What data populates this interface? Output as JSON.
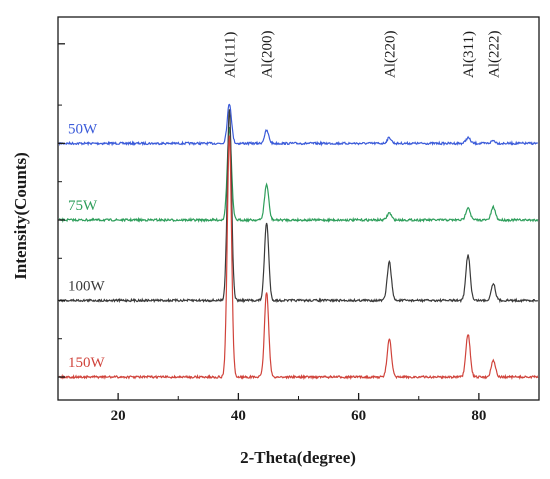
{
  "chart_data": {
    "type": "line",
    "title": "",
    "xlabel": "2-Theta(degree)",
    "ylabel": "Intensity(Counts)",
    "xlim": [
      10,
      90
    ],
    "xticks": [
      20,
      40,
      60,
      80
    ],
    "y_ticks_labeled": false,
    "grid": false,
    "legend": "none (series labels placed on left of each trace)",
    "peak_annotations": [
      {
        "label": "Al(111)",
        "x": 38.5
      },
      {
        "label": "Al(200)",
        "x": 44.7
      },
      {
        "label": "Al(220)",
        "x": 65.1
      },
      {
        "label": "Al(311)",
        "x": 78.2
      },
      {
        "label": "Al(222)",
        "x": 82.4
      }
    ],
    "series": [
      {
        "name": "50W",
        "color": "#3b5bd9",
        "baseline_frac": 0.33,
        "peaks": [
          {
            "x": 38.5,
            "height": 0.28
          },
          {
            "x": 44.7,
            "height": 0.09
          },
          {
            "x": 65.1,
            "height": 0.04
          },
          {
            "x": 78.2,
            "height": 0.04
          },
          {
            "x": 82.4,
            "height": 0.02
          }
        ]
      },
      {
        "name": "75W",
        "color": "#2e9e5b",
        "baseline_frac": 0.53,
        "peaks": [
          {
            "x": 38.5,
            "height": 0.65
          },
          {
            "x": 44.7,
            "height": 0.25
          },
          {
            "x": 65.1,
            "height": 0.05
          },
          {
            "x": 78.2,
            "height": 0.09
          },
          {
            "x": 82.4,
            "height": 0.09
          }
        ]
      },
      {
        "name": "100W",
        "color": "#3a3a3a",
        "baseline_frac": 0.74,
        "peaks": [
          {
            "x": 38.5,
            "height": 1.35
          },
          {
            "x": 44.7,
            "height": 0.55
          },
          {
            "x": 65.1,
            "height": 0.27
          },
          {
            "x": 78.2,
            "height": 0.32
          },
          {
            "x": 82.4,
            "height": 0.12
          }
        ]
      },
      {
        "name": "150W",
        "color": "#d0433b",
        "baseline_frac": 0.94,
        "peaks": [
          {
            "x": 38.5,
            "height": 1.7
          },
          {
            "x": 44.7,
            "height": 0.6
          },
          {
            "x": 65.1,
            "height": 0.27
          },
          {
            "x": 78.2,
            "height": 0.3
          },
          {
            "x": 82.4,
            "height": 0.12
          }
        ]
      }
    ]
  }
}
